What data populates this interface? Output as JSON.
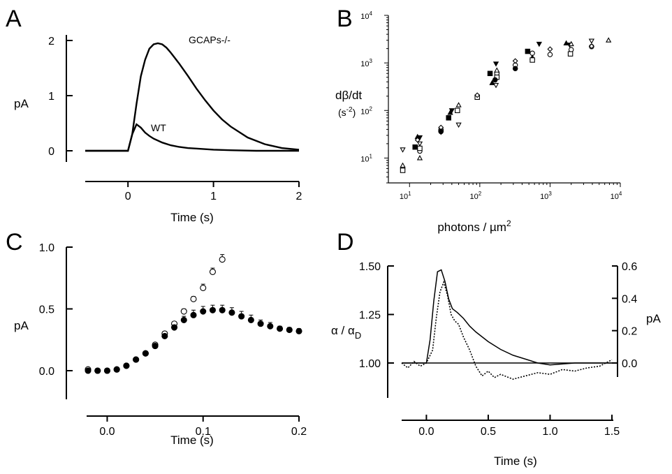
{
  "chart_data": [
    {
      "panel": "A",
      "type": "line",
      "xlabel": "Time (s)",
      "ylabel": "pA",
      "xlim": [
        -0.5,
        2
      ],
      "ylim": [
        0,
        2
      ],
      "xticks": [
        0,
        1,
        2
      ],
      "yticks": [
        0,
        1,
        2
      ],
      "annotations": [
        "GCAPs-/-",
        "WT"
      ],
      "series": [
        {
          "name": "GCAPs-/-",
          "x": [
            -0.5,
            0,
            0.05,
            0.1,
            0.15,
            0.2,
            0.25,
            0.3,
            0.35,
            0.4,
            0.45,
            0.5,
            0.6,
            0.7,
            0.8,
            0.9,
            1.0,
            1.1,
            1.2,
            1.4,
            1.6,
            1.8,
            2.0
          ],
          "y": [
            0,
            0,
            0.3,
            0.85,
            1.35,
            1.65,
            1.85,
            1.93,
            1.95,
            1.93,
            1.87,
            1.78,
            1.58,
            1.36,
            1.13,
            0.92,
            0.73,
            0.57,
            0.44,
            0.24,
            0.12,
            0.05,
            0.02
          ]
        },
        {
          "name": "WT",
          "x": [
            -0.5,
            0,
            0.05,
            0.1,
            0.15,
            0.2,
            0.25,
            0.3,
            0.4,
            0.5,
            0.6,
            0.7,
            0.8,
            1.0,
            1.2,
            1.5,
            2.0
          ],
          "y": [
            0,
            0,
            0.3,
            0.48,
            0.42,
            0.33,
            0.27,
            0.22,
            0.15,
            0.1,
            0.07,
            0.05,
            0.04,
            0.02,
            0.01,
            0,
            0
          ]
        }
      ]
    },
    {
      "panel": "B",
      "type": "scatter",
      "xlabel": "photons / µm",
      "xlabel_sup": "2",
      "ylabel": "dβ/dt",
      "ylabel2": "(s",
      "ylabel2_sup": "-2",
      "ylabel2_end": ")",
      "xscale": "log",
      "yscale": "log",
      "xlim": [
        5,
        10000
      ],
      "ylim": [
        3,
        10000
      ],
      "xticks": [
        {
          "value": 10,
          "base": "10",
          "exp": "1"
        },
        {
          "value": 100,
          "base": "10",
          "exp": "2"
        },
        {
          "value": 1000,
          "base": "10",
          "exp": "3"
        },
        {
          "value": 10000,
          "base": "10",
          "exp": "4"
        }
      ],
      "yticks": [
        {
          "value": 10,
          "base": "10",
          "exp": "1"
        },
        {
          "value": 100,
          "base": "10",
          "exp": "2"
        },
        {
          "value": 1000,
          "base": "10",
          "exp": "3"
        },
        {
          "value": 10000,
          "base": "10",
          "exp": "4"
        }
      ],
      "series": [
        {
          "name": "",
          "marker": "tri-down-open",
          "x": [
            8,
            14,
            28,
            50,
            170,
            3900
          ],
          "y": [
            15,
            20,
            35,
            50,
            340,
            2900
          ]
        },
        {
          "name": "",
          "marker": "circle-open",
          "x": [
            8,
            14,
            28,
            92,
            175,
            320,
            560,
            1000,
            2000,
            3900
          ],
          "y": [
            6,
            14,
            40,
            200,
            600,
            900,
            1600,
            1500,
            1900,
            2200
          ]
        },
        {
          "name": "",
          "marker": "tri-up-filled",
          "x": [
            13,
            38,
            150,
            560,
            1700
          ],
          "y": [
            28,
            90,
            380,
            1300,
            2600
          ]
        },
        {
          "name": "",
          "marker": "tri-down-filled",
          "x": [
            14,
            40,
            170,
            700,
            1900
          ],
          "y": [
            27,
            100,
            960,
            2500,
            2400
          ]
        },
        {
          "name": "",
          "marker": "square-filled",
          "x": [
            12,
            36,
            140,
            480
          ],
          "y": [
            17,
            70,
            600,
            1750
          ]
        },
        {
          "name": "",
          "marker": "square-open",
          "x": [
            8,
            14,
            48,
            92,
            175,
            560,
            1950
          ],
          "y": [
            5.5,
            16,
            100,
            190,
            500,
            1150,
            1550
          ]
        },
        {
          "name": "",
          "marker": "tri-up-open",
          "x": [
            8,
            14,
            28,
            50,
            175,
            2000,
            6800
          ],
          "y": [
            7,
            10,
            40,
            130,
            700,
            2500,
            3000
          ]
        },
        {
          "name": "",
          "marker": "diamond-open",
          "x": [
            13,
            28,
            92,
            320,
            1000,
            3900
          ],
          "y": [
            24,
            44,
            210,
            1100,
            1950,
            2250
          ]
        },
        {
          "name": "",
          "marker": "circle-filled",
          "x": [
            28,
            165,
            320
          ],
          "y": [
            36,
            440,
            760
          ]
        }
      ]
    },
    {
      "panel": "C",
      "type": "scatter",
      "xlabel": "Time (s)",
      "ylabel": "pA",
      "xlim": [
        -0.02,
        0.2
      ],
      "ylim": [
        -0.15,
        1.0
      ],
      "xticks": [
        0.0,
        0.1,
        0.2
      ],
      "xticklabels": [
        "0.0",
        "0.1",
        "0.2"
      ],
      "yticks": [
        0.0,
        0.5,
        1.0
      ],
      "yticklabels": [
        "0.0",
        "0.5",
        "1.0"
      ],
      "series": [
        {
          "name": "",
          "marker": "circle-open",
          "x": [
            -0.02,
            -0.01,
            0,
            0.01,
            0.02,
            0.03,
            0.04,
            0.05,
            0.06,
            0.07,
            0.08,
            0.09,
            0.1,
            0.11,
            0.12
          ],
          "y": [
            0.01,
            0,
            0,
            0.01,
            0.04,
            0.09,
            0.14,
            0.21,
            0.3,
            0.38,
            0.48,
            0.58,
            0.67,
            0.8,
            0.9
          ],
          "err": [
            0,
            0,
            0,
            0,
            0,
            0,
            0,
            0,
            0,
            0,
            0.02,
            0.02,
            0.03,
            0.03,
            0.04
          ]
        },
        {
          "name": "",
          "marker": "circle-filled",
          "x": [
            -0.02,
            -0.01,
            0,
            0.01,
            0.02,
            0.03,
            0.04,
            0.05,
            0.06,
            0.07,
            0.08,
            0.09,
            0.1,
            0.11,
            0.12,
            0.13,
            0.14,
            0.15,
            0.16,
            0.17,
            0.18,
            0.19,
            0.2
          ],
          "y": [
            0,
            0,
            0,
            0.01,
            0.04,
            0.09,
            0.14,
            0.2,
            0.28,
            0.35,
            0.41,
            0.45,
            0.48,
            0.49,
            0.49,
            0.47,
            0.44,
            0.41,
            0.38,
            0.36,
            0.34,
            0.33,
            0.32
          ],
          "err": [
            0,
            0,
            0,
            0,
            0,
            0,
            0,
            0,
            0,
            0.02,
            0.03,
            0.04,
            0.04,
            0.04,
            0.04,
            0.04,
            0.04,
            0.04,
            0.03,
            0.03,
            0.02,
            0.02,
            0.02
          ]
        }
      ]
    },
    {
      "panel": "D",
      "type": "line",
      "xlabel": "Time (s)",
      "ylabel": "α / α",
      "ylabel_sub": "D",
      "ylabel_right": "pA",
      "xlim": [
        -0.2,
        1.5
      ],
      "ylim": [
        0.85,
        1.5
      ],
      "ylim_right": [
        -0.15,
        0.6
      ],
      "xticks": [
        0.0,
        0.5,
        1.0,
        1.5
      ],
      "xticklabels": [
        "0.0",
        "0.5",
        "1.0",
        "1.5"
      ],
      "yticks": [
        1.0,
        1.25,
        1.5
      ],
      "yticklabels": [
        "1.00",
        "1.25",
        "1.50"
      ],
      "yticks_right": [
        0.0,
        0.2,
        0.4,
        0.6
      ],
      "yticklabels_right": [
        "0.0",
        "0.2",
        "0.4",
        "0.6"
      ],
      "baseline": 1.0,
      "series": [
        {
          "name": "",
          "style": "solid",
          "axis": "left",
          "x": [
            -0.2,
            0,
            0.03,
            0.06,
            0.09,
            0.12,
            0.15,
            0.18,
            0.21,
            0.25,
            0.3,
            0.35,
            0.4,
            0.5,
            0.6,
            0.7,
            0.8,
            0.9,
            1.0,
            1.2,
            1.5
          ],
          "y": [
            1.0,
            1.0,
            1.12,
            1.32,
            1.47,
            1.48,
            1.42,
            1.33,
            1.28,
            1.26,
            1.23,
            1.19,
            1.16,
            1.11,
            1.07,
            1.04,
            1.02,
            1.0,
            0.99,
            1.0,
            1.0
          ]
        },
        {
          "name": "",
          "style": "dotted",
          "axis": "right",
          "x": [
            -0.2,
            -0.15,
            -0.1,
            -0.05,
            0,
            0.05,
            0.08,
            0.11,
            0.14,
            0.17,
            0.2,
            0.23,
            0.26,
            0.3,
            0.35,
            0.4,
            0.45,
            0.5,
            0.55,
            0.6,
            0.7,
            0.8,
            0.9,
            1.0,
            1.1,
            1.2,
            1.3,
            1.4,
            1.5
          ],
          "y": [
            0.0,
            -0.03,
            0.01,
            -0.02,
            0.0,
            0.08,
            0.28,
            0.44,
            0.5,
            0.42,
            0.3,
            0.26,
            0.24,
            0.16,
            0.08,
            -0.02,
            -0.08,
            -0.05,
            -0.09,
            -0.07,
            -0.1,
            -0.08,
            -0.06,
            -0.07,
            -0.04,
            -0.05,
            -0.03,
            -0.02,
            0.02
          ]
        }
      ]
    }
  ]
}
